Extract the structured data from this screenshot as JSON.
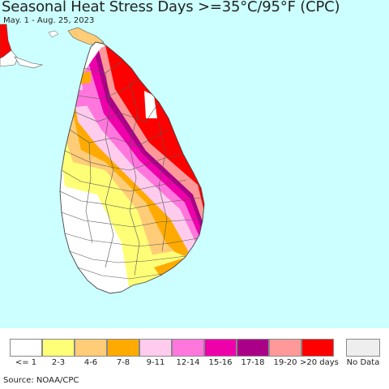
{
  "header": {
    "title": "Seasonal Heat Stress Days >=35°C/95°F (CPC)",
    "subtitle": "May. 1 - Aug. 25, 2023"
  },
  "map": {
    "ocean_color": "#ccffff",
    "land_color": "#ffffff",
    "border_color": "#555555",
    "region": "Sri Lanka"
  },
  "legend": {
    "items": [
      {
        "label": "<= 1",
        "color": "#ffffff"
      },
      {
        "label": "2-3",
        "color": "#ffff77"
      },
      {
        "label": "4-6",
        "color": "#ffcc77"
      },
      {
        "label": "7-8",
        "color": "#ffaa00"
      },
      {
        "label": "9-11",
        "color": "#ffccee"
      },
      {
        "label": "12-14",
        "color": "#ff77dd"
      },
      {
        "label": "15-16",
        "color": "#ee00aa"
      },
      {
        "label": "17-18",
        "color": "#aa0088"
      },
      {
        "label": "19-20",
        "color": "#ff9999"
      },
      {
        "label": ">20 days",
        "color": "#ff0000"
      }
    ],
    "no_data": {
      "label": "No Data",
      "color": "#eeeeee"
    }
  },
  "footer": {
    "source": "Source: NOAA/CPC"
  }
}
